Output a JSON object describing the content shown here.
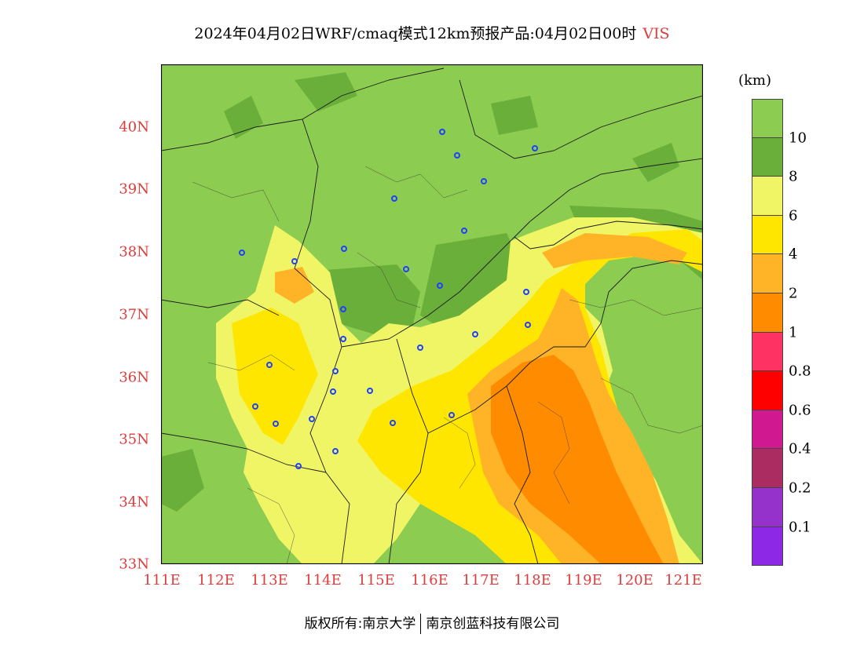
{
  "title": {
    "main": "2024年04月02日WRF/cmaq模式12km预报产品:04月02日00时",
    "variable": "VIS"
  },
  "axes": {
    "lat_labels": [
      "40N",
      "39N",
      "38N",
      "37N",
      "36N",
      "35N",
      "34N",
      "33N"
    ],
    "lon_labels": [
      "111E",
      "112E",
      "113E",
      "114E",
      "115E",
      "116E",
      "117E",
      "118E",
      "119E",
      "120E",
      "121E"
    ]
  },
  "colorbar": {
    "unit": "(km)",
    "colors": [
      "#8ccc50",
      "#6aaf3a",
      "#f0f566",
      "#ffe600",
      "#ffb428",
      "#ff8c00",
      "#ff3264",
      "#ff0000",
      "#d01890",
      "#aa2c60",
      "#9632cc",
      "#8c28e6"
    ],
    "labels": [
      "10",
      "8",
      "6",
      "4",
      "2",
      "1",
      "0.8",
      "0.6",
      "0.4",
      "0.2",
      "0.1"
    ]
  },
  "copyright": {
    "left": "版权所有:南京大学",
    "right": "南京创蓝科技有限公司"
  }
}
